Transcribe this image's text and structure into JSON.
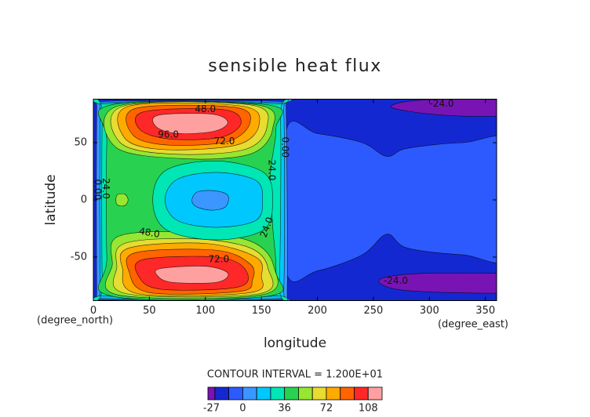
{
  "chart_data": {
    "type": "contourf",
    "title": "sensible heat flux",
    "xlabel": "longitude",
    "ylabel": "latitude",
    "xunits": "(degree_east)",
    "yunits": "(degree_north)",
    "xlim": [
      0,
      360
    ],
    "ylim": [
      -88,
      88
    ],
    "xticks": [
      0,
      50,
      100,
      150,
      200,
      250,
      300,
      350
    ],
    "yticks": [
      -50,
      0,
      50
    ],
    "colorbar": {
      "title": "CONTOUR INTERVAL = 1.200E+01",
      "edges": [
        -30,
        -24,
        -12,
        0,
        12,
        24,
        36,
        48,
        60,
        72,
        84,
        96,
        108,
        120
      ],
      "colors": [
        "#7814b4",
        "#1428d2",
        "#2d5aff",
        "#3c96ff",
        "#00c8ff",
        "#00e6b4",
        "#28d250",
        "#96e632",
        "#e6dc32",
        "#ffaa00",
        "#ff6400",
        "#ff2828",
        "#ffa0a0"
      ],
      "ticks": [
        -27,
        0,
        36,
        72,
        108
      ]
    },
    "background_level": -24,
    "regions": [
      {
        "level": -12,
        "points": [
          [
            172,
            60
          ],
          [
            200,
            58
          ],
          [
            240,
            50
          ],
          [
            262,
            38
          ],
          [
            280,
            45
          ],
          [
            330,
            50
          ],
          [
            375,
            48
          ],
          [
            375,
            -48
          ],
          [
            330,
            -48
          ],
          [
            280,
            -42
          ],
          [
            262,
            -30
          ],
          [
            240,
            -48
          ],
          [
            200,
            -62
          ],
          [
            172,
            -62
          ]
        ]
      },
      {
        "level": -30,
        "points": [
          [
            268,
            80
          ],
          [
            300,
            75
          ],
          [
            340,
            73
          ],
          [
            375,
            75
          ],
          [
            375,
            86
          ],
          [
            330,
            88
          ],
          [
            290,
            87
          ],
          [
            270,
            84
          ]
        ]
      },
      {
        "level": -30,
        "points": [
          [
            255,
            -70
          ],
          [
            280,
            -65
          ],
          [
            330,
            -64
          ],
          [
            375,
            -66
          ],
          [
            375,
            -80
          ],
          [
            320,
            -81
          ],
          [
            270,
            -78
          ]
        ]
      },
      {
        "level": 0,
        "points": [
          [
            6,
            86
          ],
          [
            168,
            86
          ],
          [
            172,
            80
          ],
          [
            173,
            -80
          ],
          [
            168,
            -87
          ],
          [
            6,
            -87
          ],
          [
            3,
            -80
          ],
          [
            3,
            80
          ]
        ]
      },
      {
        "level": 12,
        "points": [
          [
            9,
            85
          ],
          [
            165,
            85
          ],
          [
            170,
            77
          ],
          [
            170,
            -78
          ],
          [
            165,
            -86
          ],
          [
            9,
            -86
          ],
          [
            6,
            -78
          ],
          [
            6,
            78
          ]
        ]
      },
      {
        "level": 24,
        "points": [
          [
            12,
            84
          ],
          [
            161,
            84
          ],
          [
            167,
            73
          ],
          [
            166,
            -74
          ],
          [
            161,
            -84
          ],
          [
            12,
            -84
          ],
          [
            8,
            -74
          ],
          [
            8,
            74
          ]
        ]
      },
      {
        "level": 36,
        "points": [
          [
            16,
            83
          ],
          [
            156,
            83
          ],
          [
            163,
            62
          ],
          [
            158,
            22
          ],
          [
            160,
            -22
          ],
          [
            163,
            -62
          ],
          [
            157,
            -84
          ],
          [
            16,
            -84
          ],
          [
            12,
            -50
          ],
          [
            12,
            50
          ]
        ]
      },
      {
        "level": 48,
        "points": [
          [
            22,
            82
          ],
          [
            146,
            83
          ],
          [
            160,
            62
          ],
          [
            140,
            40
          ],
          [
            80,
            36
          ],
          [
            20,
            46
          ]
        ]
      },
      {
        "level": 48,
        "points": [
          [
            22,
            -32
          ],
          [
            80,
            -28
          ],
          [
            140,
            -36
          ],
          [
            161,
            -58
          ],
          [
            150,
            -83
          ],
          [
            22,
            -83
          ],
          [
            17,
            -56
          ]
        ]
      },
      {
        "level": 60,
        "points": [
          [
            27,
            82
          ],
          [
            140,
            83
          ],
          [
            155,
            64
          ],
          [
            135,
            44
          ],
          [
            70,
            40
          ],
          [
            24,
            50
          ]
        ]
      },
      {
        "level": 60,
        "points": [
          [
            28,
            -38
          ],
          [
            90,
            -34
          ],
          [
            140,
            -42
          ],
          [
            156,
            -60
          ],
          [
            148,
            -82
          ],
          [
            30,
            -82
          ],
          [
            21,
            -58
          ]
        ]
      },
      {
        "level": 72,
        "points": [
          [
            32,
            82
          ],
          [
            132,
            82
          ],
          [
            148,
            66
          ],
          [
            128,
            48
          ],
          [
            62,
            44
          ],
          [
            28,
            54
          ]
        ]
      },
      {
        "level": 72,
        "points": [
          [
            32,
            -42
          ],
          [
            100,
            -38
          ],
          [
            145,
            -50
          ],
          [
            150,
            -66
          ],
          [
            140,
            -81
          ],
          [
            40,
            -82
          ],
          [
            26,
            -60
          ]
        ]
      },
      {
        "level": 84,
        "points": [
          [
            38,
            80
          ],
          [
            125,
            81
          ],
          [
            140,
            68
          ],
          [
            120,
            51
          ],
          [
            65,
            48
          ],
          [
            35,
            57
          ]
        ]
      },
      {
        "level": 84,
        "points": [
          [
            38,
            -46
          ],
          [
            110,
            -44
          ],
          [
            140,
            -56
          ],
          [
            142,
            -70
          ],
          [
            130,
            -80
          ],
          [
            50,
            -81
          ],
          [
            32,
            -63
          ]
        ]
      },
      {
        "level": 96,
        "points": [
          [
            45,
            77
          ],
          [
            115,
            79
          ],
          [
            132,
            68
          ],
          [
            115,
            55
          ],
          [
            70,
            53
          ],
          [
            42,
            61
          ]
        ]
      },
      {
        "level": 96,
        "points": [
          [
            45,
            -52
          ],
          [
            110,
            -50
          ],
          [
            135,
            -60
          ],
          [
            130,
            -76
          ],
          [
            60,
            -78
          ],
          [
            40,
            -66
          ]
        ]
      },
      {
        "level": 108,
        "points": [
          [
            58,
            74
          ],
          [
            105,
            75
          ],
          [
            120,
            68
          ],
          [
            108,
            60
          ],
          [
            75,
            58
          ],
          [
            56,
            64
          ]
        ]
      },
      {
        "level": 108,
        "points": [
          [
            60,
            -60
          ],
          [
            100,
            -58
          ],
          [
            120,
            -64
          ],
          [
            110,
            -72
          ],
          [
            70,
            -72
          ],
          [
            57,
            -66
          ]
        ]
      },
      {
        "level": 24,
        "points": [
          [
            53,
            0
          ],
          [
            65,
            26
          ],
          [
            110,
            34
          ],
          [
            152,
            24
          ],
          [
            160,
            0
          ],
          [
            152,
            -26
          ],
          [
            110,
            -35
          ],
          [
            65,
            -26
          ]
        ]
      },
      {
        "level": 12,
        "points": [
          [
            64,
            0
          ],
          [
            75,
            18
          ],
          [
            110,
            24
          ],
          [
            145,
            17
          ],
          [
            151,
            0
          ],
          [
            145,
            -18
          ],
          [
            110,
            -24
          ],
          [
            75,
            -18
          ]
        ]
      },
      {
        "level": 0,
        "points": [
          [
            88,
            0
          ],
          [
            93,
            7
          ],
          [
            108,
            8
          ],
          [
            120,
            4
          ],
          [
            118,
            -6
          ],
          [
            106,
            -9
          ],
          [
            92,
            -6
          ]
        ]
      },
      {
        "level": 48,
        "points": [
          [
            21,
            4
          ],
          [
            28,
            5
          ],
          [
            31,
            0
          ],
          [
            28,
            -5
          ],
          [
            21,
            -4
          ]
        ]
      }
    ],
    "contour_labels": [
      {
        "value": 48,
        "label": "48.0",
        "lon": 100,
        "lat": 79
      },
      {
        "value": 96,
        "label": "96.0",
        "lon": 67,
        "lat": 57
      },
      {
        "value": 72,
        "label": "72.0",
        "lon": 117,
        "lat": 51
      },
      {
        "value": 0,
        "label": "0.00",
        "lon": 171,
        "lat": 46
      },
      {
        "value": 24,
        "label": "24.0",
        "lon": 159,
        "lat": 26
      },
      {
        "value": 0,
        "label": "0.00",
        "lon": 3.5,
        "lat": 9
      },
      {
        "value": 24,
        "label": "24.0",
        "lon": 11,
        "lat": 10
      },
      {
        "value": 48,
        "label": "48.0",
        "lon": 50,
        "lat": -29
      },
      {
        "value": 24,
        "label": "24.0",
        "lon": 155,
        "lat": -24
      },
      {
        "value": 72,
        "label": "72.0",
        "lon": 112,
        "lat": -52
      },
      {
        "value": -24,
        "label": "-24.0",
        "lon": 311,
        "lat": 84
      },
      {
        "value": -24,
        "label": "-24.0",
        "lon": 270,
        "lat": -71
      }
    ]
  }
}
